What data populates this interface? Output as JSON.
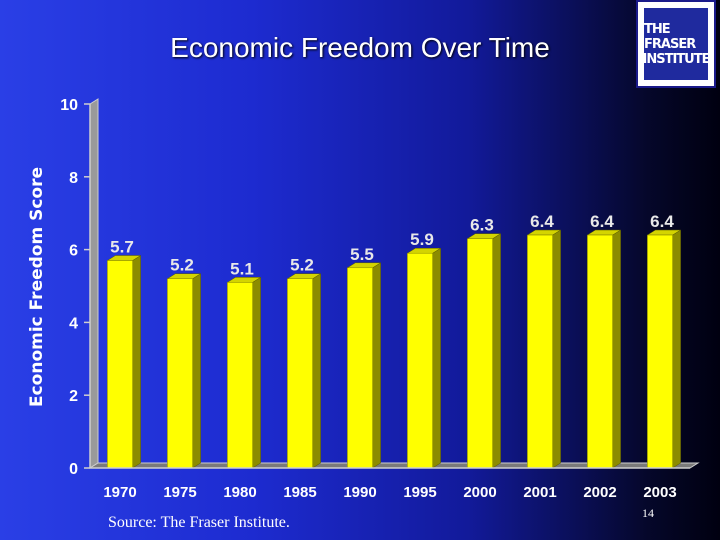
{
  "slide": {
    "title": "Economic Freedom Over Time",
    "source": "Source: The Fraser Institute.",
    "page_number": "14",
    "logo": {
      "line1": "THE FRASER",
      "line2": "INSTITUTE"
    }
  },
  "colors": {
    "bar_face": "#ffff00",
    "bar_side": "#8c8c00",
    "bar_top": "#d4d400",
    "wall": "#9a9a9a",
    "floor": "#7a7a7a",
    "axis": "#cfcfcf"
  },
  "chart_data": {
    "type": "bar",
    "title": "Economic Freedom Over Time",
    "xlabel": "",
    "ylabel": "Economic Freedom Score",
    "ylim": [
      0,
      10
    ],
    "yticks": [
      0,
      2,
      4,
      6,
      8,
      10
    ],
    "categories": [
      "1970",
      "1975",
      "1980",
      "1985",
      "1990",
      "1995",
      "2000",
      "2001",
      "2002",
      "2003"
    ],
    "values": [
      5.7,
      5.2,
      5.1,
      5.2,
      5.5,
      5.9,
      6.3,
      6.4,
      6.4,
      6.4
    ],
    "value_labels": [
      "5.7",
      "5.2",
      "5.1",
      "5.2",
      "5.5",
      "5.9",
      "6.3",
      "6.4",
      "6.4",
      "6.4"
    ],
    "grid": false,
    "legend": "none"
  }
}
